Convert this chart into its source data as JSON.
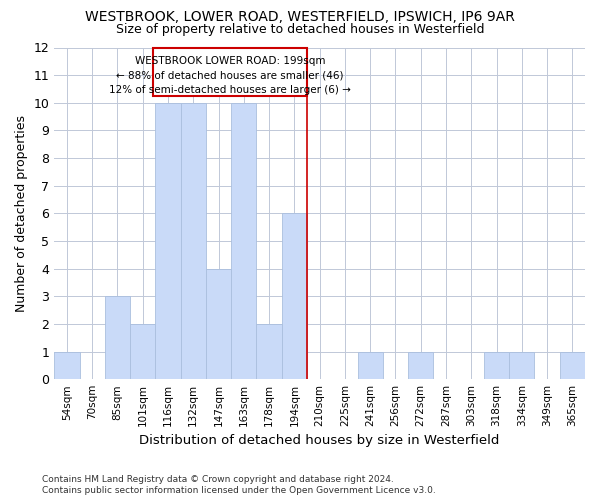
{
  "title": "WESTBROOK, LOWER ROAD, WESTERFIELD, IPSWICH, IP6 9AR",
  "subtitle": "Size of property relative to detached houses in Westerfield",
  "xlabel": "Distribution of detached houses by size in Westerfield",
  "ylabel": "Number of detached properties",
  "categories": [
    "54sqm",
    "70sqm",
    "85sqm",
    "101sqm",
    "116sqm",
    "132sqm",
    "147sqm",
    "163sqm",
    "178sqm",
    "194sqm",
    "210sqm",
    "225sqm",
    "241sqm",
    "256sqm",
    "272sqm",
    "287sqm",
    "303sqm",
    "318sqm",
    "334sqm",
    "349sqm",
    "365sqm"
  ],
  "values": [
    1,
    0,
    3,
    2,
    10,
    10,
    4,
    10,
    2,
    6,
    0,
    0,
    1,
    0,
    1,
    0,
    0,
    1,
    1,
    0,
    1
  ],
  "bar_color": "#c9daf8",
  "bar_edge_color": "#aabfde",
  "grid_color": "#c0c8d8",
  "vline_color": "#cc0000",
  "annotation_box_color": "#cc0000",
  "annotation_text_line1": "WESTBROOK LOWER ROAD: 199sqm",
  "annotation_text_line2": "← 88% of detached houses are smaller (46)",
  "annotation_text_line3": "12% of semi-detached houses are larger (6) →",
  "ylim": [
    0,
    12
  ],
  "yticks": [
    0,
    1,
    2,
    3,
    4,
    5,
    6,
    7,
    8,
    9,
    10,
    11,
    12
  ],
  "footer_line1": "Contains HM Land Registry data © Crown copyright and database right 2024.",
  "footer_line2": "Contains public sector information licensed under the Open Government Licence v3.0.",
  "background_color": "#ffffff"
}
